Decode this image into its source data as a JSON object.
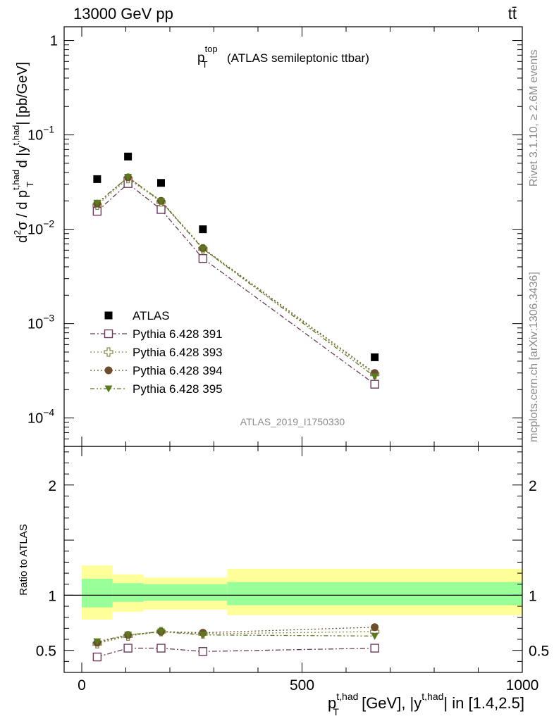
{
  "header": {
    "energy_label": "13000 GeV pp",
    "process_label": "tt̄"
  },
  "side_labels": {
    "rivet": "Rivet 3.1.10, ≥ 2.6M events",
    "mcplots": "mcplots.cern.ch [arXiv:1306.3436]"
  },
  "chart_data": [
    {
      "type": "scatter",
      "panel": "main",
      "title_main": "p",
      "title_sup": "top",
      "title_sub": "T",
      "title_rest": "(ATLAS semileptonic ttbar)",
      "watermark": "ATLAS_2019_I1750330",
      "ylabel": "d²σ / d p_T^{t,had} d |y^{t,had}| [pb/GeV]",
      "yscale": "log",
      "ylim": [
        5e-05,
        1.4
      ],
      "xlim": [
        -40,
        1000
      ],
      "y_ticks": [
        {
          "value": 1,
          "label": "1"
        },
        {
          "value": 0.1,
          "label": "10",
          "exp": "−1"
        },
        {
          "value": 0.01,
          "label": "10",
          "exp": "−2"
        },
        {
          "value": 0.001,
          "label": "10",
          "exp": "−3"
        },
        {
          "value": 0.0001,
          "label": "10",
          "exp": "−4"
        }
      ],
      "x": [
        35,
        105,
        180,
        275,
        665
      ],
      "series": [
        {
          "name": "ATLAS",
          "marker": "square-filled",
          "color": "#000000",
          "values": [
            0.034,
            0.059,
            0.031,
            0.01,
            0.00044
          ]
        },
        {
          "name": "Pythia 6.428 391",
          "marker": "square-open",
          "color": "#6b3a5a",
          "dash": "7,3,2,3",
          "values": [
            0.0155,
            0.0305,
            0.0162,
            0.0049,
            0.000228
          ]
        },
        {
          "name": "Pythia 6.428 393",
          "marker": "cross-open",
          "color": "#8c8c4a",
          "dash": "2,3",
          "values": [
            0.018,
            0.0345,
            0.0195,
            0.0062,
            0.00029
          ]
        },
        {
          "name": "Pythia 6.428 394",
          "marker": "circle-filled",
          "color": "#6b4e2e",
          "dash": "2,3",
          "values": [
            0.0187,
            0.0355,
            0.02,
            0.0063,
            0.0003
          ]
        },
        {
          "name": "Pythia 6.428 395",
          "marker": "triangle-down-filled",
          "color": "#5a7a1e",
          "dash": "6,3,2,3,2,3",
          "values": [
            0.019,
            0.0357,
            0.0198,
            0.0062,
            0.000275
          ]
        }
      ]
    },
    {
      "type": "scatter",
      "panel": "ratio",
      "ylabel": "Ratio to ATLAS",
      "xlabel_main": "p",
      "xlabel_sub": "T",
      "xlabel_sup": "t,had",
      "xlabel_mid": " [GeV], |y",
      "xlabel_sup2": "t,had",
      "xlabel_end": "| in [1.4,2.5]",
      "ylim": [
        0.3,
        2.35
      ],
      "xlim": [
        -40,
        1000
      ],
      "y_ticks": [
        {
          "value": 0.5,
          "label": "0.5"
        },
        {
          "value": 1,
          "label": "1"
        },
        {
          "value": 2,
          "label": "2"
        }
      ],
      "x_ticks": [
        {
          "value": 0,
          "label": "0"
        },
        {
          "value": 500,
          "label": "500"
        },
        {
          "value": 1000,
          "label": "1000"
        }
      ],
      "bins": [
        {
          "lo": 0,
          "hi": 70,
          "yellow": [
            0.78,
            1.27
          ],
          "green": [
            0.89,
            1.15
          ]
        },
        {
          "lo": 70,
          "hi": 140,
          "yellow": [
            0.85,
            1.19
          ],
          "green": [
            0.94,
            1.11
          ]
        },
        {
          "lo": 140,
          "hi": 330,
          "yellow": [
            0.87,
            1.16
          ],
          "green": [
            0.95,
            1.1
          ]
        },
        {
          "lo": 330,
          "hi": 1000,
          "yellow": [
            0.82,
            1.24
          ],
          "green": [
            0.91,
            1.12
          ]
        }
      ],
      "x": [
        35,
        105,
        180,
        275,
        665
      ],
      "series": [
        {
          "name": "Pythia 6.428 391",
          "values": [
            0.44,
            0.52,
            0.52,
            0.49,
            0.52
          ]
        },
        {
          "name": "Pythia 6.428 393",
          "values": [
            0.56,
            0.63,
            0.67,
            0.65,
            0.67
          ]
        },
        {
          "name": "Pythia 6.428 394",
          "values": [
            0.57,
            0.64,
            0.67,
            0.66,
            0.71
          ]
        },
        {
          "name": "Pythia 6.428 395",
          "values": [
            0.58,
            0.64,
            0.67,
            0.64,
            0.63
          ]
        }
      ]
    }
  ]
}
